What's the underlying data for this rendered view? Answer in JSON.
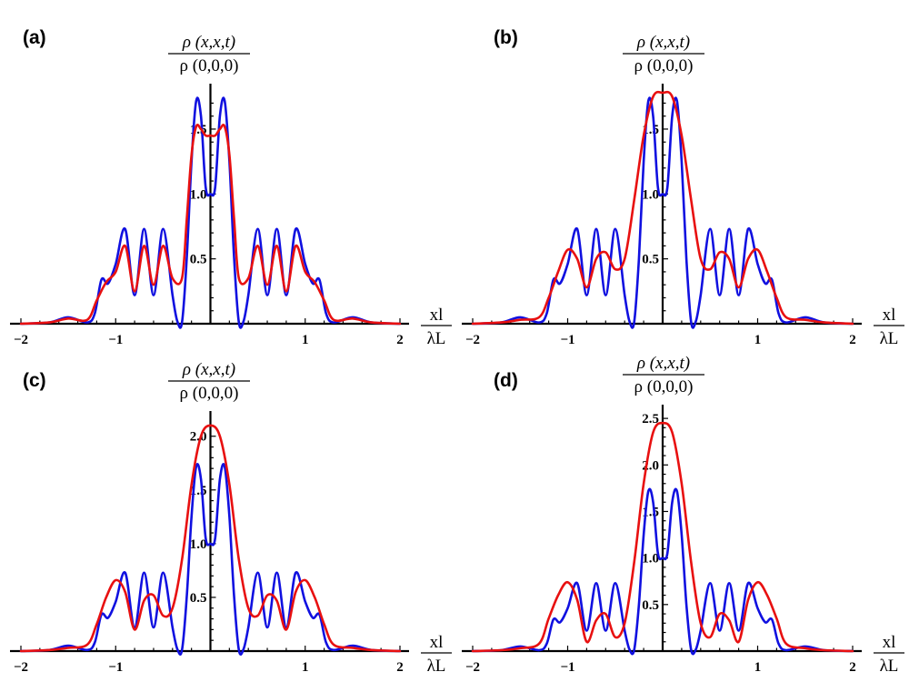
{
  "figure": {
    "colors": {
      "series_blue": "#1010e0",
      "series_red": "#e81010",
      "axis": "#000000"
    }
  },
  "chart_data": [
    {
      "type": "line",
      "panel_label": "(a)",
      "ylabel": {
        "numerator": "ρ (x,x,t)",
        "denominator": "ρ (0,0,0)"
      },
      "xlabel": {
        "numerator": "xl",
        "denominator": "λL"
      },
      "x_ticks": [
        "−2",
        "−1",
        "1",
        "2"
      ],
      "y_ticks": [
        "0.5",
        "1.0",
        "1.5"
      ],
      "y_tick_values": [
        0.5,
        1.0,
        1.5
      ],
      "xlim": [
        -2,
        2
      ],
      "ylim": [
        0,
        1.78
      ],
      "series": [
        {
          "name": "blue",
          "color": "#1010e0",
          "x": [
            -2,
            -1.7,
            -1.5,
            -1.3,
            -1.22,
            -1.15,
            -1.08,
            -1.0,
            -0.9,
            -0.8,
            -0.7,
            -0.6,
            -0.5,
            -0.4,
            -0.35,
            -0.3,
            -0.25,
            -0.2,
            -0.15,
            -0.1,
            -0.05,
            0,
            0.05,
            0.1,
            0.15,
            0.2,
            0.25,
            0.3,
            0.35,
            0.4,
            0.5,
            0.6,
            0.7,
            0.8,
            0.9,
            1.0,
            1.08,
            1.15,
            1.22,
            1.3,
            1.5,
            1.7,
            2
          ],
          "y": [
            0,
            0.01,
            0.05,
            0.01,
            0.08,
            0.34,
            0.31,
            0.46,
            0.73,
            0.22,
            0.73,
            0.22,
            0.73,
            0.22,
            0.02,
            0.01,
            0.5,
            1.25,
            1.72,
            1.6,
            1.05,
            1.0,
            1.05,
            1.6,
            1.72,
            1.25,
            0.5,
            0.01,
            0.02,
            0.22,
            0.73,
            0.22,
            0.73,
            0.22,
            0.73,
            0.46,
            0.31,
            0.34,
            0.08,
            0.01,
            0.05,
            0.01,
            0
          ]
        },
        {
          "name": "red",
          "color": "#e81010",
          "x": [
            -2,
            -1.7,
            -1.5,
            -1.3,
            -1.2,
            -1.1,
            -1.0,
            -0.9,
            -0.8,
            -0.7,
            -0.6,
            -0.5,
            -0.4,
            -0.3,
            -0.25,
            -0.2,
            -0.15,
            -0.1,
            -0.05,
            0,
            0.05,
            0.1,
            0.15,
            0.2,
            0.25,
            0.3,
            0.4,
            0.5,
            0.6,
            0.7,
            0.8,
            0.9,
            1.0,
            1.1,
            1.2,
            1.3,
            1.5,
            1.7,
            2
          ],
          "y": [
            0,
            0.01,
            0.04,
            0.03,
            0.18,
            0.32,
            0.4,
            0.6,
            0.25,
            0.6,
            0.3,
            0.6,
            0.35,
            0.35,
            0.8,
            1.3,
            1.52,
            1.5,
            1.45,
            1.45,
            1.45,
            1.5,
            1.52,
            1.3,
            0.8,
            0.35,
            0.35,
            0.6,
            0.3,
            0.6,
            0.25,
            0.6,
            0.4,
            0.32,
            0.18,
            0.03,
            0.04,
            0.01,
            0
          ]
        }
      ]
    },
    {
      "type": "line",
      "panel_label": "(b)",
      "ylabel": {
        "numerator": "ρ (x,x,t)",
        "denominator": "ρ (0,0,0)"
      },
      "xlabel": {
        "numerator": "xl",
        "denominator": "λL"
      },
      "x_ticks": [
        "−2",
        "−1",
        "1",
        "2"
      ],
      "y_ticks": [
        "0.5",
        "1.0",
        "1.5"
      ],
      "y_tick_values": [
        0.5,
        1.0,
        1.5
      ],
      "xlim": [
        -2,
        2
      ],
      "ylim": [
        0,
        1.78
      ],
      "series": [
        {
          "name": "blue",
          "color": "#1010e0",
          "x": [
            -2,
            -1.7,
            -1.5,
            -1.3,
            -1.22,
            -1.15,
            -1.08,
            -1.0,
            -0.9,
            -0.8,
            -0.7,
            -0.6,
            -0.5,
            -0.4,
            -0.35,
            -0.3,
            -0.25,
            -0.2,
            -0.15,
            -0.1,
            -0.05,
            0,
            0.05,
            0.1,
            0.15,
            0.2,
            0.25,
            0.3,
            0.35,
            0.4,
            0.5,
            0.6,
            0.7,
            0.8,
            0.9,
            1.0,
            1.08,
            1.15,
            1.22,
            1.3,
            1.5,
            1.7,
            2
          ],
          "y": [
            0,
            0.01,
            0.05,
            0.01,
            0.08,
            0.34,
            0.31,
            0.46,
            0.73,
            0.22,
            0.73,
            0.22,
            0.73,
            0.22,
            0.02,
            0.01,
            0.5,
            1.25,
            1.72,
            1.6,
            1.05,
            1.0,
            1.05,
            1.6,
            1.72,
            1.25,
            0.5,
            0.01,
            0.02,
            0.22,
            0.73,
            0.22,
            0.73,
            0.22,
            0.73,
            0.46,
            0.31,
            0.34,
            0.08,
            0.01,
            0.05,
            0.01,
            0
          ]
        },
        {
          "name": "red",
          "color": "#e81010",
          "x": [
            -2,
            -1.7,
            -1.5,
            -1.3,
            -1.2,
            -1.1,
            -1.0,
            -0.9,
            -0.8,
            -0.7,
            -0.6,
            -0.5,
            -0.4,
            -0.3,
            -0.2,
            -0.1,
            0,
            0.1,
            0.2,
            0.3,
            0.4,
            0.5,
            0.6,
            0.7,
            0.8,
            0.9,
            1.0,
            1.1,
            1.2,
            1.3,
            1.5,
            1.7,
            2
          ],
          "y": [
            0,
            0.01,
            0.03,
            0.05,
            0.2,
            0.4,
            0.57,
            0.5,
            0.28,
            0.5,
            0.55,
            0.42,
            0.5,
            0.95,
            1.45,
            1.75,
            1.78,
            1.75,
            1.45,
            0.95,
            0.5,
            0.42,
            0.55,
            0.5,
            0.28,
            0.5,
            0.57,
            0.4,
            0.2,
            0.05,
            0.03,
            0.01,
            0
          ]
        }
      ]
    },
    {
      "type": "line",
      "panel_label": "(c)",
      "ylabel": {
        "numerator": "ρ (x,x,t)",
        "denominator": "ρ (0,0,0)"
      },
      "xlabel": {
        "numerator": "xl",
        "denominator": "λL"
      },
      "x_ticks": [
        "−2",
        "−1",
        "1",
        "2"
      ],
      "y_ticks": [
        "0.5",
        "1.0",
        "1.5",
        "2.0"
      ],
      "y_tick_values": [
        0.5,
        1.0,
        1.5,
        2.0
      ],
      "xlim": [
        -2,
        2
      ],
      "ylim": [
        0,
        2.15
      ],
      "series": [
        {
          "name": "blue",
          "color": "#1010e0",
          "x": [
            -2,
            -1.7,
            -1.5,
            -1.3,
            -1.22,
            -1.15,
            -1.08,
            -1.0,
            -0.9,
            -0.8,
            -0.7,
            -0.6,
            -0.5,
            -0.4,
            -0.35,
            -0.3,
            -0.25,
            -0.2,
            -0.15,
            -0.1,
            -0.05,
            0,
            0.05,
            0.1,
            0.15,
            0.2,
            0.25,
            0.3,
            0.35,
            0.4,
            0.5,
            0.6,
            0.7,
            0.8,
            0.9,
            1.0,
            1.08,
            1.15,
            1.22,
            1.3,
            1.5,
            1.7,
            2
          ],
          "y": [
            0,
            0.01,
            0.05,
            0.01,
            0.08,
            0.34,
            0.31,
            0.46,
            0.73,
            0.22,
            0.73,
            0.22,
            0.73,
            0.22,
            0.02,
            0.01,
            0.5,
            1.25,
            1.72,
            1.6,
            1.05,
            1.0,
            1.05,
            1.6,
            1.72,
            1.25,
            0.5,
            0.01,
            0.02,
            0.22,
            0.73,
            0.22,
            0.73,
            0.22,
            0.73,
            0.46,
            0.31,
            0.34,
            0.08,
            0.01,
            0.05,
            0.01,
            0
          ]
        },
        {
          "name": "red",
          "color": "#e81010",
          "x": [
            -2,
            -1.7,
            -1.5,
            -1.3,
            -1.2,
            -1.1,
            -1.0,
            -0.9,
            -0.8,
            -0.7,
            -0.6,
            -0.5,
            -0.4,
            -0.3,
            -0.2,
            -0.1,
            0,
            0.1,
            0.2,
            0.3,
            0.4,
            0.5,
            0.6,
            0.7,
            0.8,
            0.9,
            1.0,
            1.1,
            1.2,
            1.3,
            1.5,
            1.7,
            2
          ],
          "y": [
            0,
            0.01,
            0.03,
            0.06,
            0.25,
            0.5,
            0.66,
            0.55,
            0.2,
            0.47,
            0.52,
            0.33,
            0.4,
            0.85,
            1.55,
            2.0,
            2.1,
            2.0,
            1.55,
            0.85,
            0.4,
            0.33,
            0.52,
            0.47,
            0.2,
            0.55,
            0.66,
            0.5,
            0.25,
            0.06,
            0.03,
            0.01,
            0
          ]
        }
      ]
    },
    {
      "type": "line",
      "panel_label": "(d)",
      "ylabel": {
        "numerator": "ρ (x,x,t)",
        "denominator": "ρ (0,0,0)"
      },
      "xlabel": {
        "numerator": "xl",
        "denominator": "λL"
      },
      "x_ticks": [
        "−2",
        "−1",
        "1",
        "2"
      ],
      "y_ticks": [
        "0.5",
        "1.0",
        "1.5",
        "2.0",
        "2.5"
      ],
      "y_tick_values": [
        0.5,
        1.0,
        1.5,
        2.0,
        2.5
      ],
      "xlim": [
        -2,
        2
      ],
      "ylim": [
        0,
        2.55
      ],
      "series": [
        {
          "name": "blue",
          "color": "#1010e0",
          "x": [
            -2,
            -1.7,
            -1.5,
            -1.3,
            -1.22,
            -1.15,
            -1.08,
            -1.0,
            -0.9,
            -0.8,
            -0.7,
            -0.6,
            -0.5,
            -0.4,
            -0.35,
            -0.3,
            -0.25,
            -0.2,
            -0.15,
            -0.1,
            -0.05,
            0,
            0.05,
            0.1,
            0.15,
            0.2,
            0.25,
            0.3,
            0.35,
            0.4,
            0.5,
            0.6,
            0.7,
            0.8,
            0.9,
            1.0,
            1.08,
            1.15,
            1.22,
            1.3,
            1.5,
            1.7,
            2
          ],
          "y": [
            0,
            0.01,
            0.05,
            0.01,
            0.08,
            0.34,
            0.31,
            0.46,
            0.73,
            0.22,
            0.73,
            0.22,
            0.73,
            0.22,
            0.02,
            0.01,
            0.5,
            1.25,
            1.72,
            1.6,
            1.05,
            1.0,
            1.05,
            1.6,
            1.72,
            1.25,
            0.5,
            0.01,
            0.02,
            0.22,
            0.73,
            0.22,
            0.73,
            0.22,
            0.73,
            0.46,
            0.31,
            0.34,
            0.08,
            0.01,
            0.05,
            0.01,
            0
          ]
        },
        {
          "name": "red",
          "color": "#e81010",
          "x": [
            -2,
            -1.7,
            -1.5,
            -1.3,
            -1.2,
            -1.1,
            -1.0,
            -0.9,
            -0.8,
            -0.7,
            -0.6,
            -0.5,
            -0.4,
            -0.3,
            -0.2,
            -0.1,
            0,
            0.1,
            0.2,
            0.3,
            0.4,
            0.5,
            0.6,
            0.7,
            0.8,
            0.9,
            1.0,
            1.1,
            1.2,
            1.3,
            1.5,
            1.7,
            2
          ],
          "y": [
            0,
            0.01,
            0.03,
            0.08,
            0.35,
            0.6,
            0.74,
            0.55,
            0.1,
            0.33,
            0.4,
            0.15,
            0.3,
            0.95,
            1.8,
            2.35,
            2.45,
            2.35,
            1.8,
            0.95,
            0.3,
            0.15,
            0.4,
            0.33,
            0.1,
            0.55,
            0.74,
            0.6,
            0.35,
            0.08,
            0.03,
            0.01,
            0
          ]
        }
      ]
    }
  ]
}
